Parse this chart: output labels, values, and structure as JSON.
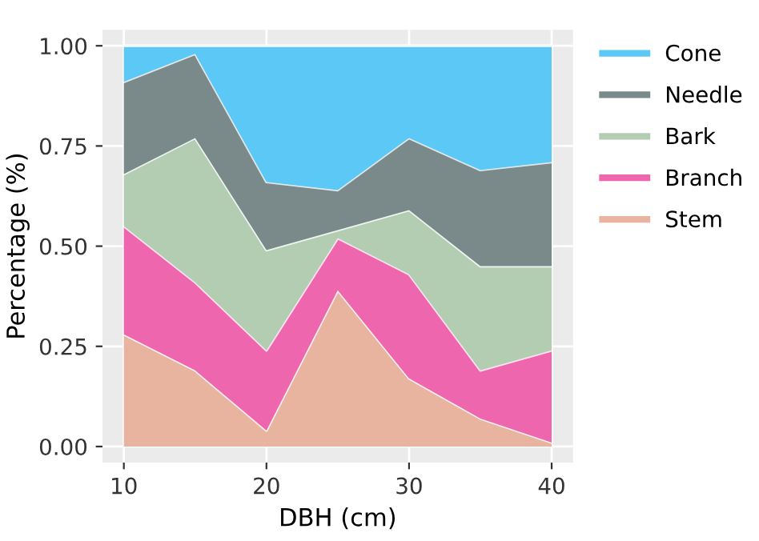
{
  "chart_data": {
    "type": "area",
    "stacked": true,
    "xlabel": "DBH (cm)",
    "ylabel": "Percentage (%)",
    "x": [
      10,
      15,
      20,
      25,
      30,
      35,
      40
    ],
    "series": [
      {
        "name": "Stem",
        "color": "#e8b4a0",
        "values": [
          0.28,
          0.19,
          0.04,
          0.39,
          0.17,
          0.07,
          0.01
        ]
      },
      {
        "name": "Branch",
        "color": "#ee66ad",
        "values": [
          0.27,
          0.22,
          0.2,
          0.13,
          0.26,
          0.12,
          0.23
        ]
      },
      {
        "name": "Bark",
        "color": "#b3cdb3",
        "values": [
          0.13,
          0.36,
          0.25,
          0.02,
          0.16,
          0.26,
          0.21
        ]
      },
      {
        "name": "Needle",
        "color": "#7a8a8a",
        "values": [
          0.23,
          0.21,
          0.17,
          0.1,
          0.18,
          0.24,
          0.26
        ]
      },
      {
        "name": "Cone",
        "color": "#5bc8f5",
        "values": [
          0.09,
          0.02,
          0.34,
          0.36,
          0.23,
          0.31,
          0.29
        ]
      }
    ],
    "xlim": [
      8.5,
      41.5
    ],
    "ylim": [
      -0.04,
      1.04
    ],
    "xticks": [
      10,
      20,
      30,
      40
    ],
    "yticks": [
      {
        "value": 0,
        "label": "0.00"
      },
      {
        "value": 0.25,
        "label": "0.25"
      },
      {
        "value": 0.5,
        "label": "0.50"
      },
      {
        "value": 0.75,
        "label": "0.75"
      },
      {
        "value": 1,
        "label": "1.00"
      }
    ],
    "grid": true,
    "legend": "right"
  }
}
